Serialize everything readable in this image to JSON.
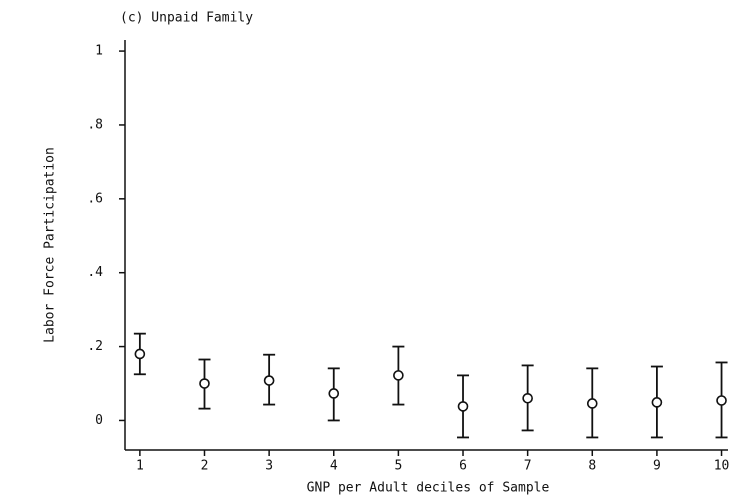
{
  "chart_data": {
    "type": "errorbar",
    "title": "(c) Unpaid Family",
    "ylabel": "Labor Force Participation",
    "xlabel": "GNP per Adult deciles of Sample",
    "x": [
      1,
      2,
      3,
      4,
      5,
      6,
      7,
      8,
      9,
      10
    ],
    "values": [
      0.18,
      0.1,
      0.108,
      0.073,
      0.122,
      0.038,
      0.06,
      0.046,
      0.049,
      0.054
    ],
    "lower": [
      0.125,
      0.032,
      0.043,
      0.0,
      0.043,
      -0.046,
      -0.027,
      -0.046,
      -0.046,
      -0.046
    ],
    "upper": [
      0.235,
      0.165,
      0.178,
      0.141,
      0.2,
      0.122,
      0.149,
      0.141,
      0.146,
      0.157
    ],
    "color": "#111111",
    "xlim": [
      0.77,
      10.1
    ],
    "xticks": [
      1,
      2,
      3,
      4,
      5,
      6,
      7,
      8,
      9,
      10
    ],
    "ylim": [
      -0.08,
      1.03
    ],
    "yticks": [
      0,
      {
        "value": 0.2,
        "label": ".2"
      },
      {
        "value": 0.4,
        "label": ".4"
      },
      {
        "value": 0.6,
        "label": ".6"
      },
      {
        "value": 0.8,
        "label": ".8"
      },
      1
    ],
    "grid": false
  }
}
